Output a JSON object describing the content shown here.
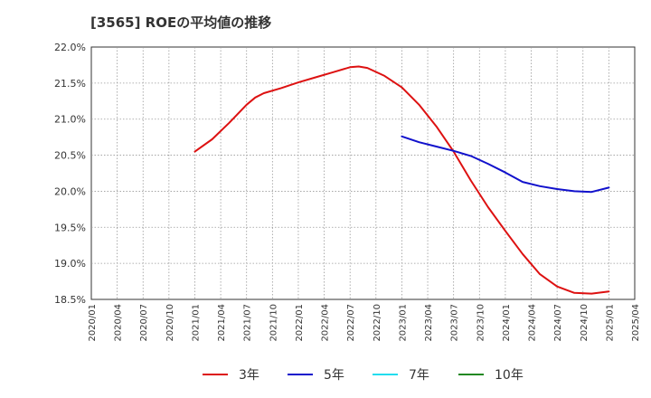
{
  "chart_data": {
    "type": "line",
    "title": "[3565]  ROEの平均値の推移",
    "xlabel": "",
    "ylabel": "",
    "ylim": [
      18.5,
      22.0
    ],
    "yticks": [
      "18.5%",
      "19.0%",
      "19.5%",
      "20.0%",
      "20.5%",
      "21.0%",
      "21.5%",
      "22.0%"
    ],
    "ytick_values": [
      18.5,
      19.0,
      19.5,
      20.0,
      20.5,
      21.0,
      21.5,
      22.0
    ],
    "x_start": "2020/01",
    "x_end": "2025/04",
    "xticks": [
      "2020/01",
      "2020/04",
      "2020/07",
      "2020/10",
      "2021/01",
      "2021/04",
      "2021/07",
      "2021/10",
      "2022/01",
      "2022/04",
      "2022/07",
      "2022/10",
      "2023/01",
      "2023/04",
      "2023/07",
      "2023/10",
      "2024/01",
      "2024/04",
      "2024/07",
      "2024/10",
      "2025/01",
      "2025/04"
    ],
    "grid": true,
    "legend_position": "bottom",
    "series": [
      {
        "name": "3年",
        "color": "#dd1111",
        "x": [
          "2021/01",
          "2021/03",
          "2021/05",
          "2021/07",
          "2021/08",
          "2021/09",
          "2021/11",
          "2022/01",
          "2022/03",
          "2022/05",
          "2022/07",
          "2022/08",
          "2022/09",
          "2022/11",
          "2023/01",
          "2023/03",
          "2023/05",
          "2023/07",
          "2023/09",
          "2023/11",
          "2024/01",
          "2024/03",
          "2024/05",
          "2024/07",
          "2024/09",
          "2024/11",
          "2025/01"
        ],
        "values": [
          20.55,
          20.72,
          20.95,
          21.2,
          21.3,
          21.36,
          21.43,
          21.51,
          21.58,
          21.65,
          21.72,
          21.73,
          21.71,
          21.6,
          21.44,
          21.2,
          20.9,
          20.55,
          20.15,
          19.78,
          19.45,
          19.13,
          18.85,
          18.68,
          18.59,
          18.58,
          18.61
        ]
      },
      {
        "name": "5年",
        "color": "#1111cc",
        "x": [
          "2023/01",
          "2023/03",
          "2023/05",
          "2023/07",
          "2023/09",
          "2023/11",
          "2024/01",
          "2024/03",
          "2024/05",
          "2024/07",
          "2024/09",
          "2024/11",
          "2025/01"
        ],
        "values": [
          20.76,
          20.68,
          20.62,
          20.56,
          20.49,
          20.38,
          20.26,
          20.13,
          20.07,
          20.03,
          20.0,
          19.99,
          20.05
        ]
      },
      {
        "name": "7年",
        "color": "#22ddee",
        "x": [],
        "values": []
      },
      {
        "name": "10年",
        "color": "#228822",
        "x": [],
        "values": []
      }
    ]
  }
}
